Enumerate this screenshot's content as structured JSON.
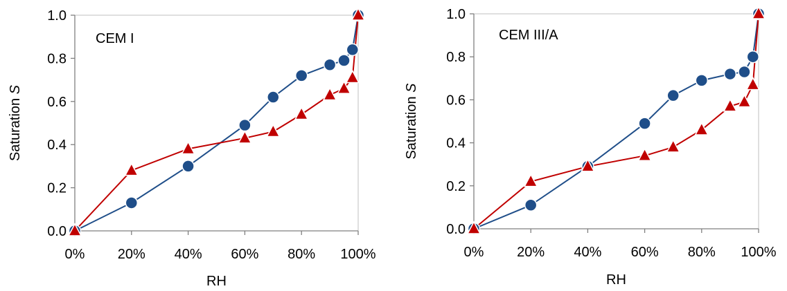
{
  "chart_data": [
    {
      "type": "line",
      "title": "",
      "annotation": "CEM I",
      "xlabel": "RH",
      "ylabel": "Saturation S",
      "ylabel_main": "Saturation ",
      "ylabel_symbol": "S",
      "xlim": [
        0,
        100
      ],
      "ylim": [
        0,
        1
      ],
      "x_ticks": [
        0,
        20,
        40,
        60,
        80,
        100
      ],
      "x_tick_labels": [
        "0%",
        "20%",
        "40%",
        "60%",
        "80%",
        "100%"
      ],
      "y_ticks": [
        0,
        0.2,
        0.4,
        0.6,
        0.8,
        1.0
      ],
      "y_tick_labels": [
        "0.0",
        "0.2",
        "0.4",
        "0.6",
        "0.8",
        "1.0"
      ],
      "grid": false,
      "series": [
        {
          "color": "#1f4e89",
          "marker": "circle",
          "x": [
            0,
            20,
            40,
            60,
            70,
            80,
            90,
            95,
            98,
            100
          ],
          "y": [
            0.0,
            0.13,
            0.3,
            0.49,
            0.62,
            0.72,
            0.77,
            0.79,
            0.84,
            1.0
          ]
        },
        {
          "color": "#c00000",
          "marker": "triangle",
          "x": [
            0,
            20,
            40,
            60,
            70,
            80,
            90,
            95,
            98,
            100
          ],
          "y": [
            0.0,
            0.28,
            0.38,
            0.43,
            0.46,
            0.54,
            0.63,
            0.66,
            0.71,
            1.0
          ]
        }
      ]
    },
    {
      "type": "line",
      "title": "",
      "annotation": "CEM III/A",
      "xlabel": "RH",
      "ylabel": "Saturation S",
      "ylabel_main": "Saturation ",
      "ylabel_symbol": "S",
      "xlim": [
        0,
        100
      ],
      "ylim": [
        0,
        1
      ],
      "x_ticks": [
        0,
        20,
        40,
        60,
        80,
        100
      ],
      "x_tick_labels": [
        "0%",
        "20%",
        "40%",
        "60%",
        "80%",
        "100%"
      ],
      "y_ticks": [
        0,
        0.2,
        0.4,
        0.6,
        0.8,
        1.0
      ],
      "y_tick_labels": [
        "0.0",
        "0.2",
        "0.4",
        "0.6",
        "0.8",
        "1.0"
      ],
      "grid": false,
      "series": [
        {
          "color": "#1f4e89",
          "marker": "circle",
          "x": [
            0,
            20,
            40,
            60,
            70,
            80,
            90,
            95,
            98,
            100
          ],
          "y": [
            0.0,
            0.11,
            0.29,
            0.49,
            0.62,
            0.69,
            0.72,
            0.73,
            0.8,
            1.0
          ]
        },
        {
          "color": "#c00000",
          "marker": "triangle",
          "x": [
            0,
            20,
            40,
            60,
            70,
            80,
            90,
            95,
            98,
            100
          ],
          "y": [
            0.0,
            0.22,
            0.29,
            0.34,
            0.38,
            0.46,
            0.57,
            0.59,
            0.67,
            1.0
          ]
        }
      ]
    }
  ]
}
